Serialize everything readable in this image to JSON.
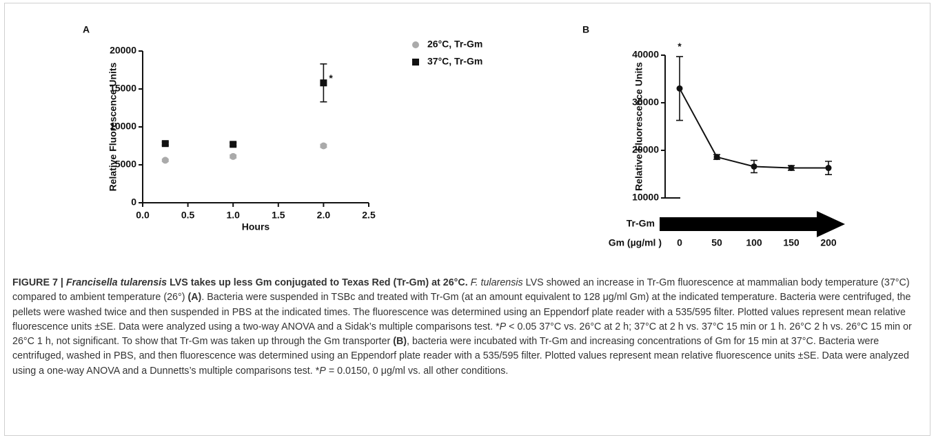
{
  "chart_data": [
    {
      "type": "scatter",
      "panel_label": "A",
      "x_label": "Hours",
      "y_label": "Relative  Fluorescence Units",
      "x": [
        0.25,
        1,
        2
      ],
      "xlim": [
        0,
        2.5
      ],
      "xticks": [
        {
          "value": 0,
          "label": "0.0"
        },
        0.5,
        {
          "value": 1,
          "label": "1.0"
        },
        1.5,
        {
          "value": 2,
          "label": "2.0"
        },
        2.5
      ],
      "ylim": [
        0,
        20000
      ],
      "yticks": [
        0,
        5000,
        10000,
        15000,
        20000
      ],
      "series": [
        {
          "name": "26°C, Tr-Gm",
          "color": "#aaaaaa",
          "marker": "circle",
          "values": [
            5600,
            6100,
            7500
          ],
          "errors": [
            150,
            200,
            200
          ]
        },
        {
          "name": "37°C, Tr-Gm",
          "color": "#111111",
          "marker": "square",
          "values": [
            7800,
            7700,
            15800
          ],
          "errors": [
            200,
            200,
            2500
          ]
        }
      ],
      "annotation": "*"
    },
    {
      "type": "line",
      "panel_label": "B",
      "y_label": "Relative  Fluorescence Units",
      "treatment_label": "Tr-Gm",
      "x_label": "Gm (µg/ml )",
      "categories": [
        "0",
        "50",
        "100",
        "150",
        "200"
      ],
      "ylim": [
        10000,
        40000
      ],
      "yticks": [
        10000,
        20000,
        30000,
        40000
      ],
      "series": [
        {
          "color": "#111111",
          "values": [
            33000,
            18600,
            16600,
            16300,
            16300
          ],
          "errors": [
            6700,
            500,
            1300,
            500,
            1400
          ]
        }
      ],
      "annotation": "*"
    }
  ],
  "caption": {
    "parts": [
      "FIGURE 7 | ",
      "Francisella tularensis",
      " LVS takes up less Gm conjugated to Texas Red (Tr-Gm) at 26°C.",
      " F. tularensis",
      " LVS showed an increase in Tr-Gm fluorescence at mammalian body temperature (37°C) compared to ambient temperature (26°) ",
      "(A)",
      ". Bacteria were suspended in TSBc and treated with Tr-Gm (at an amount equivalent to 128 μg/ml Gm) at the indicated temperature. Bacteria were centrifuged, the pellets were washed twice and then suspended in PBS at the indicated times. The fluorescence was determined using an Eppendorf plate reader with a 535/595 filter. Plotted values represent mean relative fluorescence units ±SE. Data were analyzed using a two-way ANOVA and a Sidak’s multiple comparisons test. *",
      "P",
      " < 0.05 37°C vs. 26°C at 2 h; 37°C at 2 h vs. 37°C 15 min or 1 h. 26°C 2 h vs. 26°C 15 min or 26°C 1 h, not significant. To show that Tr-Gm was taken up through the Gm transporter ",
      "(B)",
      ", bacteria were incubated with Tr-Gm and increasing concentrations of Gm for 15 min at 37°C. Bacteria were centrifuged, washed in PBS, and then fluorescence was determined using an Eppendorf plate reader with a 535/595 filter. Plotted values represent mean relative fluorescence units ±SE. Data were analyzed using a one-way ANOVA and a Dunnetts’s multiple comparisons test. *",
      "P",
      " = 0.0150, 0 μg/ml vs. all other conditions."
    ]
  }
}
